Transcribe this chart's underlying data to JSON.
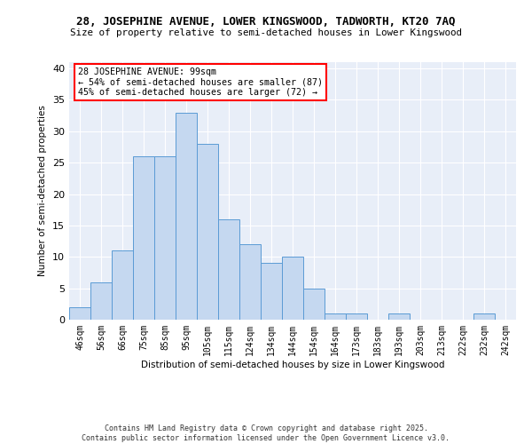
{
  "title": "28, JOSEPHINE AVENUE, LOWER KINGSWOOD, TADWORTH, KT20 7AQ",
  "subtitle": "Size of property relative to semi-detached houses in Lower Kingswood",
  "xlabel": "Distribution of semi-detached houses by size in Lower Kingswood",
  "ylabel": "Number of semi-detached properties",
  "categories": [
    "46sqm",
    "56sqm",
    "66sqm",
    "75sqm",
    "85sqm",
    "95sqm",
    "105sqm",
    "115sqm",
    "124sqm",
    "134sqm",
    "144sqm",
    "154sqm",
    "164sqm",
    "173sqm",
    "183sqm",
    "193sqm",
    "203sqm",
    "213sqm",
    "222sqm",
    "232sqm",
    "242sqm"
  ],
  "values": [
    2,
    6,
    11,
    26,
    26,
    33,
    28,
    16,
    12,
    9,
    10,
    5,
    1,
    1,
    0,
    1,
    0,
    0,
    0,
    1,
    0
  ],
  "bar_color": "#c5d8f0",
  "bar_edge_color": "#5b9bd5",
  "highlight_index": 5,
  "annotation_text_line1": "28 JOSEPHINE AVENUE: 99sqm",
  "annotation_text_line2": "← 54% of semi-detached houses are smaller (87)",
  "annotation_text_line3": "45% of semi-detached houses are larger (72) →",
  "ylim": [
    0,
    41
  ],
  "yticks": [
    0,
    5,
    10,
    15,
    20,
    25,
    30,
    35,
    40
  ],
  "background_color": "#e8eef8",
  "footer_line1": "Contains HM Land Registry data © Crown copyright and database right 2025.",
  "footer_line2": "Contains public sector information licensed under the Open Government Licence v3.0."
}
